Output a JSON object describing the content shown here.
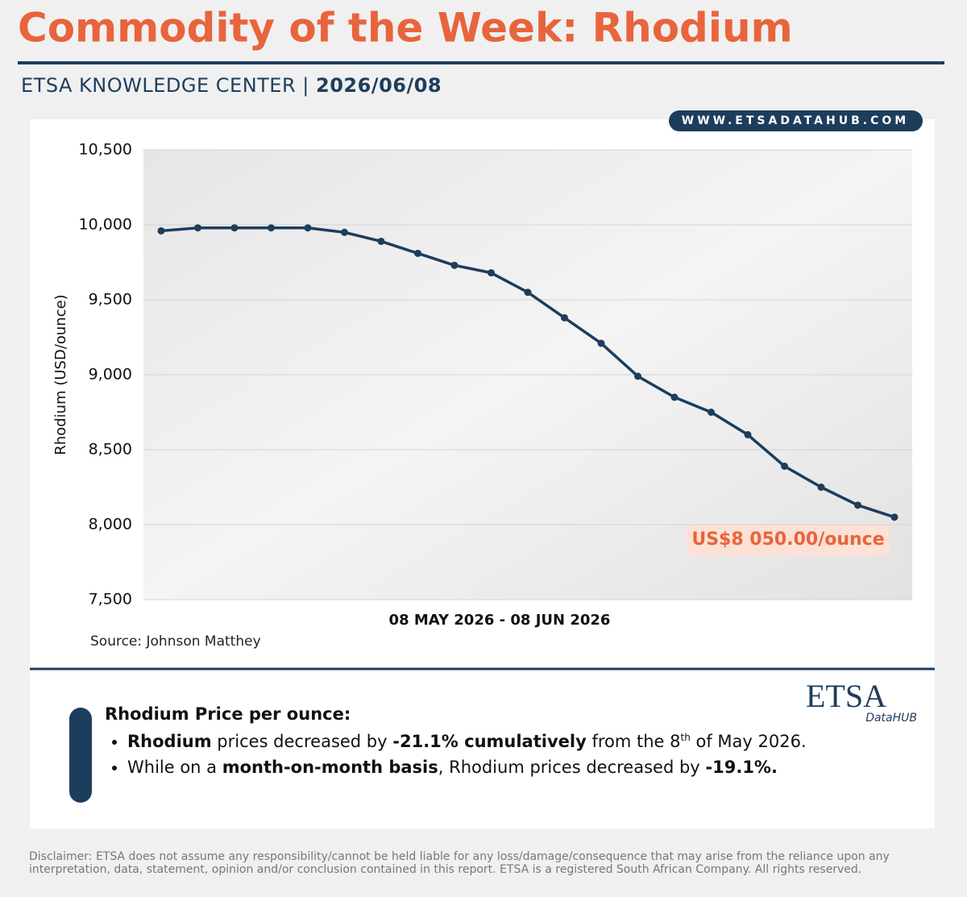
{
  "header": {
    "title": "Commodity of the Week: Rhodium",
    "subtitle": "ETSA KNOWLEDGE CENTER |",
    "date": "2026/06/08",
    "website": "WWW.ETSADATAHUB.COM"
  },
  "chart_data": {
    "type": "line",
    "categories": [
      null,
      null,
      null,
      null,
      null,
      null,
      null,
      null,
      null,
      null,
      null,
      null,
      null,
      null,
      null,
      null,
      null,
      null,
      null,
      null,
      null
    ],
    "series": [
      {
        "name": "Rhodium",
        "color": "#1d3d5c",
        "values": [
          9960,
          9980,
          9980,
          9980,
          9980,
          9950,
          9890,
          9810,
          9730,
          9680,
          9550,
          9380,
          9210,
          8990,
          8850,
          8750,
          8600,
          8390,
          8250,
          8130,
          8050
        ]
      }
    ],
    "ylim": [
      7500,
      10500
    ],
    "yticks": [
      {
        "value": 7500,
        "label": "7,500"
      },
      {
        "value": 8000,
        "label": "8,000"
      },
      {
        "value": 8500,
        "label": "8,500"
      },
      {
        "value": 9000,
        "label": "9,000"
      },
      {
        "value": 9500,
        "label": "9,500"
      },
      {
        "value": 10000,
        "label": "10,000"
      },
      {
        "value": 10500,
        "label": "10,500"
      }
    ],
    "grid": true,
    "y_label": "Rhodium (USD/ounce)",
    "x_label": "08 MAY 2026 - 08 JUN 2026",
    "annotation": "US$8 050.00/ounce",
    "source": "Source: Johnson Matthey"
  },
  "logo": {
    "main": "ETSA",
    "sub": "DataHUB"
  },
  "summary": {
    "heading": "Rhodium Price per ounce:",
    "bullets": [
      [
        "Rhodium",
        " prices decreased by ",
        "-21.1% cumulatively",
        " from the 8",
        "th",
        " of May 2026."
      ],
      [
        "While on a ",
        "month-on-month basis",
        ", Rhodium prices decreased by ",
        "-19.1%."
      ]
    ]
  },
  "disclaimer": "Disclaimer:  ETSA does not assume any responsibility/cannot be held liable for any loss/damage/consequence that may arise from the reliance upon any interpretation, data, statement, opinion and/or conclusion contained in this report. ETSA is a registered South African Company. All rights reserved."
}
